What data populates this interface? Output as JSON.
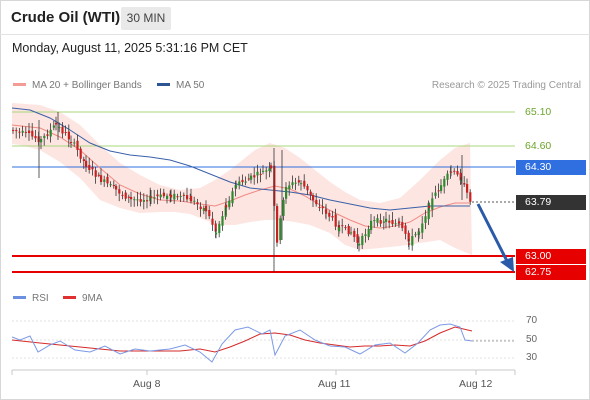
{
  "header": {
    "title": "Crude Oil (WTI)",
    "timeframe": "30 MIN"
  },
  "timestamp": "Monday, August 11, 2025 5:31:16 PM CET",
  "legend": {
    "bb_label": "MA 20 + Bollinger Bands",
    "bb_color": "#f49b95",
    "ma50_label": "MA 50",
    "ma50_color": "#2d5596"
  },
  "credit": "Research © 2025 Trading Central",
  "levels": {
    "r2": "65.10",
    "r1": "64.60",
    "pivot": "64.30",
    "s1": "63.00",
    "s2": "62.75",
    "last": "63.79"
  },
  "level_colors": {
    "resistance": "#8cc63f",
    "pivot": "#2f6fe0",
    "support": "#e60000",
    "last": "#333333"
  },
  "rsi_panel": {
    "rsi_label": "RSI",
    "rsi_color": "#6d8fe0",
    "ma_label": "9MA",
    "ma_color": "#e03030",
    "ticks": [
      "70",
      "50",
      "30"
    ]
  },
  "x_axis": {
    "labels": [
      "Aug 8",
      "Aug 11",
      "Aug 12"
    ]
  }
}
